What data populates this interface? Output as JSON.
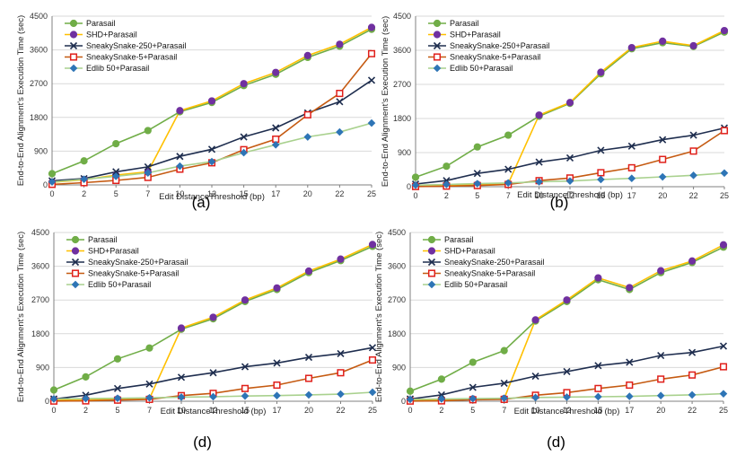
{
  "colors": {
    "Parasail": "#70ad47",
    "SHD+Parasail": "#7030a0",
    "SneakySnake-250+Parasail": "#1f2e4f",
    "SneakySnake-5+Parasail": "#e0201b",
    "Edlib 50+Parasail": "#2e75b6",
    "orange_line": "#ffc000",
    "brown_line": "#c55a11",
    "green_line": "#a9d18e",
    "grid": "#d9d9d9"
  },
  "chart_data": [
    {
      "type": "line",
      "panel_label": "(a)",
      "xlabel": "Edit DistanceThreshold (bp)",
      "ylabel": "End-to-End Alignment's Execution Time (sec)",
      "categories": [
        "0",
        "2",
        "5",
        "7",
        "10",
        "12",
        "15",
        "17",
        "20",
        "22",
        "25"
      ],
      "ylim": [
        0,
        4500
      ],
      "yticks": [
        "0",
        "900",
        "1800",
        "2700",
        "3600",
        "4500"
      ],
      "grid": true,
      "legend_position": "top-left",
      "series": [
        {
          "name": "Parasail",
          "values": [
            300,
            640,
            1100,
            1450,
            1950,
            2200,
            2650,
            2950,
            3400,
            3700,
            4150
          ],
          "marker": "circle",
          "line_color": "#70ad47",
          "marker_color": "#70ad47"
        },
        {
          "name": "SHD+Parasail",
          "values": [
            70,
            140,
            260,
            350,
            1980,
            2240,
            2700,
            3000,
            3450,
            3750,
            4200
          ],
          "marker": "circle",
          "line_color": "#ffc000",
          "marker_color": "#7030a0"
        },
        {
          "name": "SneakySnake-250+Parasail",
          "values": [
            110,
            170,
            350,
            480,
            760,
            950,
            1280,
            1520,
            1920,
            2220,
            2790
          ],
          "marker": "x",
          "line_color": "#1f2e4f",
          "marker_color": "#1f2e4f"
        },
        {
          "name": "SneakySnake-5+Parasail",
          "values": [
            15,
            60,
            120,
            200,
            420,
            590,
            940,
            1220,
            1870,
            2440,
            3500
          ],
          "marker": "square",
          "line_color": "#c55a11",
          "marker_color": "#e0201b"
        },
        {
          "name": "Edlib 50+Parasail",
          "values": [
            80,
            150,
            230,
            320,
            500,
            620,
            860,
            1070,
            1280,
            1410,
            1650
          ],
          "marker": "diamond",
          "line_color": "#a9d18e",
          "marker_color": "#2e75b6"
        }
      ]
    },
    {
      "type": "line",
      "panel_label": "(b)",
      "xlabel": "Edit DistanceThreshold (bp)",
      "ylabel": "End-to-End Alignment's Execution Time (sec)",
      "categories": [
        "0",
        "2",
        "5",
        "7",
        "10",
        "12",
        "15",
        "17",
        "20",
        "22",
        "25"
      ],
      "ylim": [
        0,
        4500
      ],
      "yticks": [
        "0",
        "900",
        "1800",
        "2700",
        "3600",
        "4500"
      ],
      "grid": true,
      "legend_position": "top-left",
      "series": [
        {
          "name": "Parasail",
          "values": [
            250,
            540,
            1050,
            1360,
            1860,
            2200,
            2980,
            3640,
            3800,
            3700,
            4080
          ],
          "marker": "circle",
          "line_color": "#70ad47",
          "marker_color": "#70ad47"
        },
        {
          "name": "SHD+Parasail",
          "values": [
            30,
            40,
            60,
            80,
            1890,
            2220,
            3020,
            3670,
            3840,
            3720,
            4120
          ],
          "marker": "circle",
          "line_color": "#ffc000",
          "marker_color": "#7030a0"
        },
        {
          "name": "SneakySnake-250+Parasail",
          "values": [
            70,
            160,
            350,
            460,
            650,
            760,
            960,
            1070,
            1240,
            1360,
            1550
          ],
          "marker": "x",
          "line_color": "#1f2e4f",
          "marker_color": "#1f2e4f"
        },
        {
          "name": "SneakySnake-5+Parasail",
          "values": [
            5,
            15,
            30,
            60,
            160,
            230,
            370,
            500,
            720,
            940,
            1480
          ],
          "marker": "square",
          "line_color": "#c55a11",
          "marker_color": "#e0201b"
        },
        {
          "name": "Edlib 50+Parasail",
          "values": [
            40,
            60,
            80,
            100,
            130,
            150,
            190,
            220,
            260,
            300,
            360
          ],
          "marker": "diamond",
          "line_color": "#a9d18e",
          "marker_color": "#2e75b6"
        }
      ]
    },
    {
      "type": "line",
      "panel_label": "(d)",
      "xlabel": "Edit DistanceThreshold (bp)",
      "ylabel": "End-to-End Alignment's Execution Time (sec)",
      "categories": [
        "0",
        "2",
        "5",
        "7",
        "10",
        "12",
        "15",
        "17",
        "20",
        "22",
        "25"
      ],
      "ylim": [
        0,
        4500
      ],
      "yticks": [
        "0",
        "900",
        "1800",
        "2700",
        "3600",
        "4500"
      ],
      "grid": true,
      "legend_position": "top-left",
      "series": [
        {
          "name": "Parasail",
          "values": [
            300,
            650,
            1130,
            1420,
            1920,
            2200,
            2660,
            2980,
            3430,
            3750,
            4130
          ],
          "marker": "circle",
          "line_color": "#70ad47",
          "marker_color": "#70ad47"
        },
        {
          "name": "SHD+Parasail",
          "values": [
            40,
            50,
            60,
            70,
            1950,
            2240,
            2700,
            3020,
            3470,
            3790,
            4180
          ],
          "marker": "circle",
          "line_color": "#ffc000",
          "marker_color": "#7030a0"
        },
        {
          "name": "SneakySnake-250+Parasail",
          "values": [
            60,
            160,
            340,
            460,
            640,
            760,
            920,
            1020,
            1170,
            1270,
            1430
          ],
          "marker": "x",
          "line_color": "#1f2e4f",
          "marker_color": "#1f2e4f"
        },
        {
          "name": "SneakySnake-5+Parasail",
          "values": [
            5,
            10,
            30,
            50,
            150,
            210,
            340,
            430,
            610,
            760,
            1100
          ],
          "marker": "square",
          "line_color": "#c55a11",
          "marker_color": "#e0201b"
        },
        {
          "name": "Edlib 50+Parasail",
          "values": [
            60,
            70,
            80,
            90,
            110,
            120,
            140,
            150,
            170,
            190,
            240
          ],
          "marker": "diamond",
          "line_color": "#a9d18e",
          "marker_color": "#2e75b6"
        }
      ]
    },
    {
      "type": "line",
      "panel_label": "(d)",
      "xlabel": "Edit DistanceThreshold (bp)",
      "ylabel": "End-to-End Alignment's Execution Time (sec)",
      "categories": [
        "0",
        "2",
        "5",
        "7",
        "10",
        "12",
        "15",
        "17",
        "20",
        "22",
        "25"
      ],
      "ylim": [
        0,
        4500
      ],
      "yticks": [
        "0",
        "900",
        "1800",
        "2700",
        "3600",
        "4500"
      ],
      "grid": true,
      "legend_position": "top-left",
      "series": [
        {
          "name": "Parasail",
          "values": [
            270,
            590,
            1040,
            1350,
            2140,
            2660,
            3240,
            2980,
            3430,
            3700,
            4110
          ],
          "marker": "circle",
          "line_color": "#70ad47",
          "marker_color": "#70ad47"
        },
        {
          "name": "SHD+Parasail",
          "values": [
            30,
            40,
            60,
            70,
            2170,
            2700,
            3290,
            3030,
            3480,
            3740,
            4170
          ],
          "marker": "circle",
          "line_color": "#ffc000",
          "marker_color": "#7030a0"
        },
        {
          "name": "SneakySnake-250+Parasail",
          "values": [
            60,
            170,
            370,
            480,
            670,
            790,
            950,
            1040,
            1220,
            1300,
            1470
          ],
          "marker": "x",
          "line_color": "#1f2e4f",
          "marker_color": "#1f2e4f"
        },
        {
          "name": "SneakySnake-5+Parasail",
          "values": [
            5,
            10,
            40,
            50,
            160,
            230,
            340,
            430,
            590,
            700,
            920
          ],
          "marker": "square",
          "line_color": "#c55a11",
          "marker_color": "#e0201b"
        },
        {
          "name": "Edlib 50+Parasail",
          "values": [
            50,
            60,
            70,
            80,
            100,
            110,
            120,
            130,
            150,
            170,
            200
          ],
          "marker": "diamond",
          "line_color": "#a9d18e",
          "marker_color": "#2e75b6"
        }
      ]
    }
  ]
}
